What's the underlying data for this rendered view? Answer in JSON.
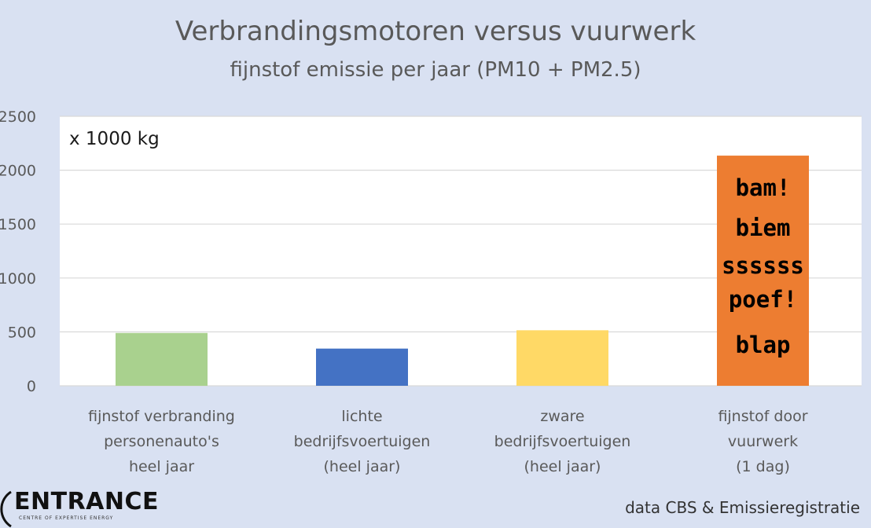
{
  "chart_data": {
    "type": "bar",
    "title": "Verbrandingsmotoren versus vuurwerk",
    "subtitle": "fijnstof emissie per jaar (PM10 + PM2.5)",
    "unit_label": "x 1000 kg",
    "ylim": [
      0,
      2500
    ],
    "yticks": [
      "0",
      "500",
      "1000",
      "1500",
      "2000",
      "2500"
    ],
    "ytick_values": [
      0,
      500,
      1000,
      1500,
      2000,
      2500
    ],
    "grid": true,
    "categories": [
      [
        "fijnstof verbranding",
        "personenauto's",
        "heel jaar"
      ],
      [
        "lichte",
        "bedrijfsvoertuigen",
        "(heel jaar)"
      ],
      [
        "zware",
        "bedrijfsvoertuigen",
        "(heel jaar)"
      ],
      [
        "fijnstof door",
        "vuurwerk",
        "(1 dag)"
      ]
    ],
    "values": [
      490,
      345,
      515,
      2135
    ],
    "colors": [
      "#a9d18e",
      "#4472c4",
      "#ffd966",
      "#ed7d31"
    ],
    "annotations": [
      "bam!",
      "biem",
      "ssssss",
      "poef!",
      "blap"
    ]
  },
  "footer": {
    "logo_name": "ENTRANCE",
    "logo_tagline": "CENTRE OF EXPERTISE ENERGY",
    "source": "data CBS & Emissieregistratie"
  }
}
